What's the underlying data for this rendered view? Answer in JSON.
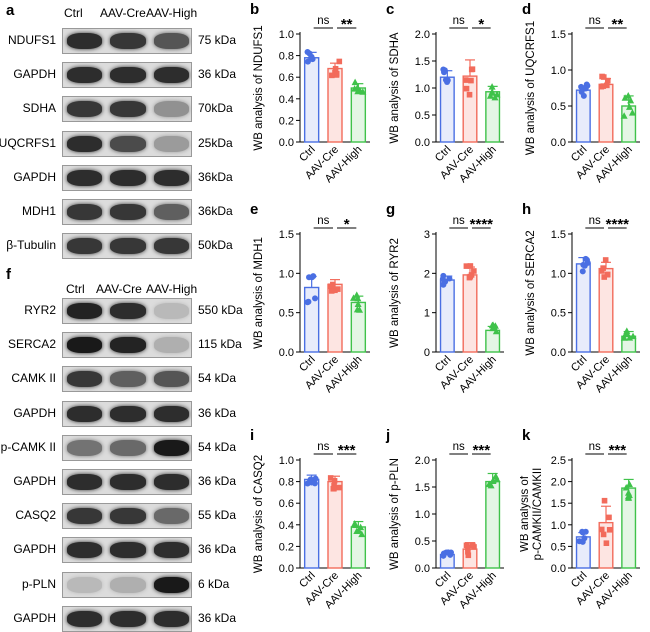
{
  "western_blot_1": {
    "panel": "a",
    "lanes": [
      "Ctrl",
      "AAV-Cre",
      "AAV-High"
    ],
    "rows": [
      {
        "label": "NDUFS1",
        "kda": "75 kDa",
        "intensity": [
          0.85,
          0.8,
          0.65
        ]
      },
      {
        "label": "GAPDH",
        "kda": "36 kDa",
        "intensity": [
          0.85,
          0.85,
          0.85
        ]
      },
      {
        "label": "SDHA",
        "kda": "70kDa",
        "intensity": [
          0.8,
          0.8,
          0.35
        ]
      },
      {
        "label": "UQCRFS1",
        "kda": "25kDa",
        "intensity": [
          0.85,
          0.7,
          0.3
        ]
      },
      {
        "label": "GAPDH",
        "kda": "36kDa",
        "intensity": [
          0.85,
          0.85,
          0.85
        ]
      },
      {
        "label": "MDH1",
        "kda": "36kDa",
        "intensity": [
          0.8,
          0.8,
          0.6
        ]
      },
      {
        "label": "β-Tubulin",
        "kda": "50kDa",
        "intensity": [
          0.8,
          0.8,
          0.8
        ]
      }
    ]
  },
  "western_blot_2": {
    "panel": "f",
    "lanes": [
      "Ctrl",
      "AAV-Cre",
      "AAV-High"
    ],
    "rows": [
      {
        "label": "RYR2",
        "kda": "550 kDa",
        "intensity": [
          0.9,
          0.85,
          0.15
        ]
      },
      {
        "label": "SERCA2",
        "kda": "115 kDa",
        "intensity": [
          0.95,
          0.9,
          0.2
        ]
      },
      {
        "label": "CAMK II",
        "kda": "54 kDa",
        "intensity": [
          0.8,
          0.6,
          0.65
        ]
      },
      {
        "label": "GAPDH",
        "kda": "36 kDa",
        "intensity": [
          0.85,
          0.85,
          0.85
        ]
      },
      {
        "label": "p-CAMK II",
        "kda": "54 kDa",
        "intensity": [
          0.5,
          0.55,
          0.95
        ]
      },
      {
        "label": "GAPDH",
        "kda": "36 kDa",
        "intensity": [
          0.85,
          0.85,
          0.85
        ]
      },
      {
        "label": "CASQ2",
        "kda": "55 kDa",
        "intensity": [
          0.8,
          0.8,
          0.55
        ]
      },
      {
        "label": "GAPDH",
        "kda": "36 kDa",
        "intensity": [
          0.85,
          0.85,
          0.85
        ]
      },
      {
        "label": "p-PLN",
        "kda": "6 kDa",
        "intensity": [
          0.15,
          0.2,
          0.95
        ]
      },
      {
        "label": "GAPDH",
        "kda": "36 kDa",
        "intensity": [
          0.85,
          0.85,
          0.85
        ]
      }
    ]
  },
  "colors": {
    "ctrl": "#4a6fe3",
    "cre": "#f26b5b",
    "high": "#3fc24a"
  },
  "chart_data": [
    {
      "panel": "b",
      "type": "bar",
      "categories": [
        "Ctrl",
        "AAV-Cre",
        "AAV-High"
      ],
      "values": [
        0.78,
        0.68,
        0.5
      ],
      "errors": [
        0.05,
        0.05,
        0.04
      ],
      "ylabel": "WB analysis of NDUFS1",
      "ylim": [
        0.0,
        1.0
      ],
      "yticks": [
        "0.0",
        "0.2",
        "0.4",
        "0.6",
        "0.8",
        "1.0"
      ],
      "sig": [
        {
          "from": 0,
          "to": 1,
          "text": "ns"
        },
        {
          "from": 1,
          "to": 2,
          "text": "**"
        }
      ]
    },
    {
      "panel": "c",
      "type": "bar",
      "categories": [
        "Ctrl",
        "AAV-Cre",
        "AAV-High"
      ],
      "values": [
        1.2,
        1.22,
        0.93
      ],
      "errors": [
        0.12,
        0.3,
        0.1
      ],
      "ylabel": "WB analysis of SDHA",
      "ylim": [
        0.0,
        2.0
      ],
      "yticks": [
        "0.0",
        "0.5",
        "1.0",
        "1.5",
        "2.0"
      ],
      "sig": [
        {
          "from": 0,
          "to": 1,
          "text": "ns"
        },
        {
          "from": 1,
          "to": 2,
          "text": "*"
        }
      ]
    },
    {
      "panel": "d",
      "type": "bar",
      "categories": [
        "Ctrl",
        "AAV-Cre",
        "AAV-High"
      ],
      "values": [
        0.72,
        0.8,
        0.5
      ],
      "errors": [
        0.06,
        0.08,
        0.14
      ],
      "ylabel": "WB analysis of UQCRFS1",
      "ylim": [
        0.0,
        1.5
      ],
      "yticks": [
        "0.0",
        "0.5",
        "1.0",
        "1.5"
      ],
      "sig": [
        {
          "from": 0,
          "to": 1,
          "text": "ns"
        },
        {
          "from": 1,
          "to": 2,
          "text": "**"
        }
      ]
    },
    {
      "panel": "e",
      "type": "bar",
      "categories": [
        "Ctrl",
        "AAV-Cre",
        "AAV-High"
      ],
      "values": [
        0.82,
        0.86,
        0.63
      ],
      "errors": [
        0.14,
        0.06,
        0.08
      ],
      "ylabel": "WB analysis of MDH1",
      "ylim": [
        0.0,
        1.5
      ],
      "yticks": [
        "0.0",
        "0.5",
        "1.0",
        "1.5"
      ],
      "sig": [
        {
          "from": 0,
          "to": 1,
          "text": "ns"
        },
        {
          "from": 1,
          "to": 2,
          "text": "*"
        }
      ]
    },
    {
      "panel": "g",
      "type": "bar",
      "categories": [
        "Ctrl",
        "AAV-Cre",
        "AAV-High"
      ],
      "values": [
        1.83,
        1.96,
        0.55
      ],
      "errors": [
        0.1,
        0.2,
        0.1
      ],
      "ylabel": "WB analysis of RYR2",
      "ylim": [
        0,
        3
      ],
      "yticks": [
        "0",
        "1",
        "2",
        "3"
      ],
      "sig": [
        {
          "from": 0,
          "to": 1,
          "text": "ns"
        },
        {
          "from": 1,
          "to": 2,
          "text": "****"
        }
      ]
    },
    {
      "panel": "h",
      "type": "bar",
      "categories": [
        "Ctrl",
        "AAV-Cre",
        "AAV-High"
      ],
      "values": [
        1.12,
        1.06,
        0.2
      ],
      "errors": [
        0.08,
        0.08,
        0.06
      ],
      "ylabel": "WB analysis of SERCA2",
      "ylim": [
        0.0,
        1.5
      ],
      "yticks": [
        "0.0",
        "0.5",
        "1.0",
        "1.5"
      ],
      "sig": [
        {
          "from": 0,
          "to": 1,
          "text": "ns"
        },
        {
          "from": 1,
          "to": 2,
          "text": "****"
        }
      ]
    },
    {
      "panel": "i",
      "type": "bar",
      "categories": [
        "Ctrl",
        "AAV-Cre",
        "AAV-High"
      ],
      "values": [
        0.82,
        0.8,
        0.38
      ],
      "errors": [
        0.04,
        0.05,
        0.05
      ],
      "ylabel": "WB analysis of CASQ2",
      "ylim": [
        0.0,
        1.0
      ],
      "yticks": [
        "0.0",
        "0.2",
        "0.4",
        "0.6",
        "0.8",
        "1.0"
      ],
      "sig": [
        {
          "from": 0,
          "to": 1,
          "text": "ns"
        },
        {
          "from": 1,
          "to": 2,
          "text": "***"
        }
      ]
    },
    {
      "panel": "j",
      "type": "bar",
      "categories": [
        "Ctrl",
        "AAV-Cre",
        "AAV-High"
      ],
      "values": [
        0.25,
        0.35,
        1.6
      ],
      "errors": [
        0.03,
        0.12,
        0.15
      ],
      "ylabel": "WB analysis of p-PLN",
      "ylim": [
        0.0,
        2.0
      ],
      "yticks": [
        "0.0",
        "0.5",
        "1.0",
        "1.5",
        "2.0"
      ],
      "sig": [
        {
          "from": 0,
          "to": 1,
          "text": "ns"
        },
        {
          "from": 1,
          "to": 2,
          "text": "***"
        }
      ]
    },
    {
      "panel": "k",
      "type": "bar",
      "categories": [
        "Ctrl",
        "AAV-Cre",
        "AAV-High"
      ],
      "values": [
        0.72,
        1.05,
        1.85
      ],
      "errors": [
        0.1,
        0.38,
        0.2
      ],
      "ylabel": "WB analysis of\np-CAMKII/CAMKII",
      "ylim": [
        0.0,
        2.5
      ],
      "yticks": [
        "0.0",
        "0.5",
        "1.0",
        "1.5",
        "2.0",
        "2.5"
      ],
      "sig": [
        {
          "from": 0,
          "to": 1,
          "text": "ns"
        },
        {
          "from": 1,
          "to": 2,
          "text": "***"
        }
      ]
    }
  ]
}
